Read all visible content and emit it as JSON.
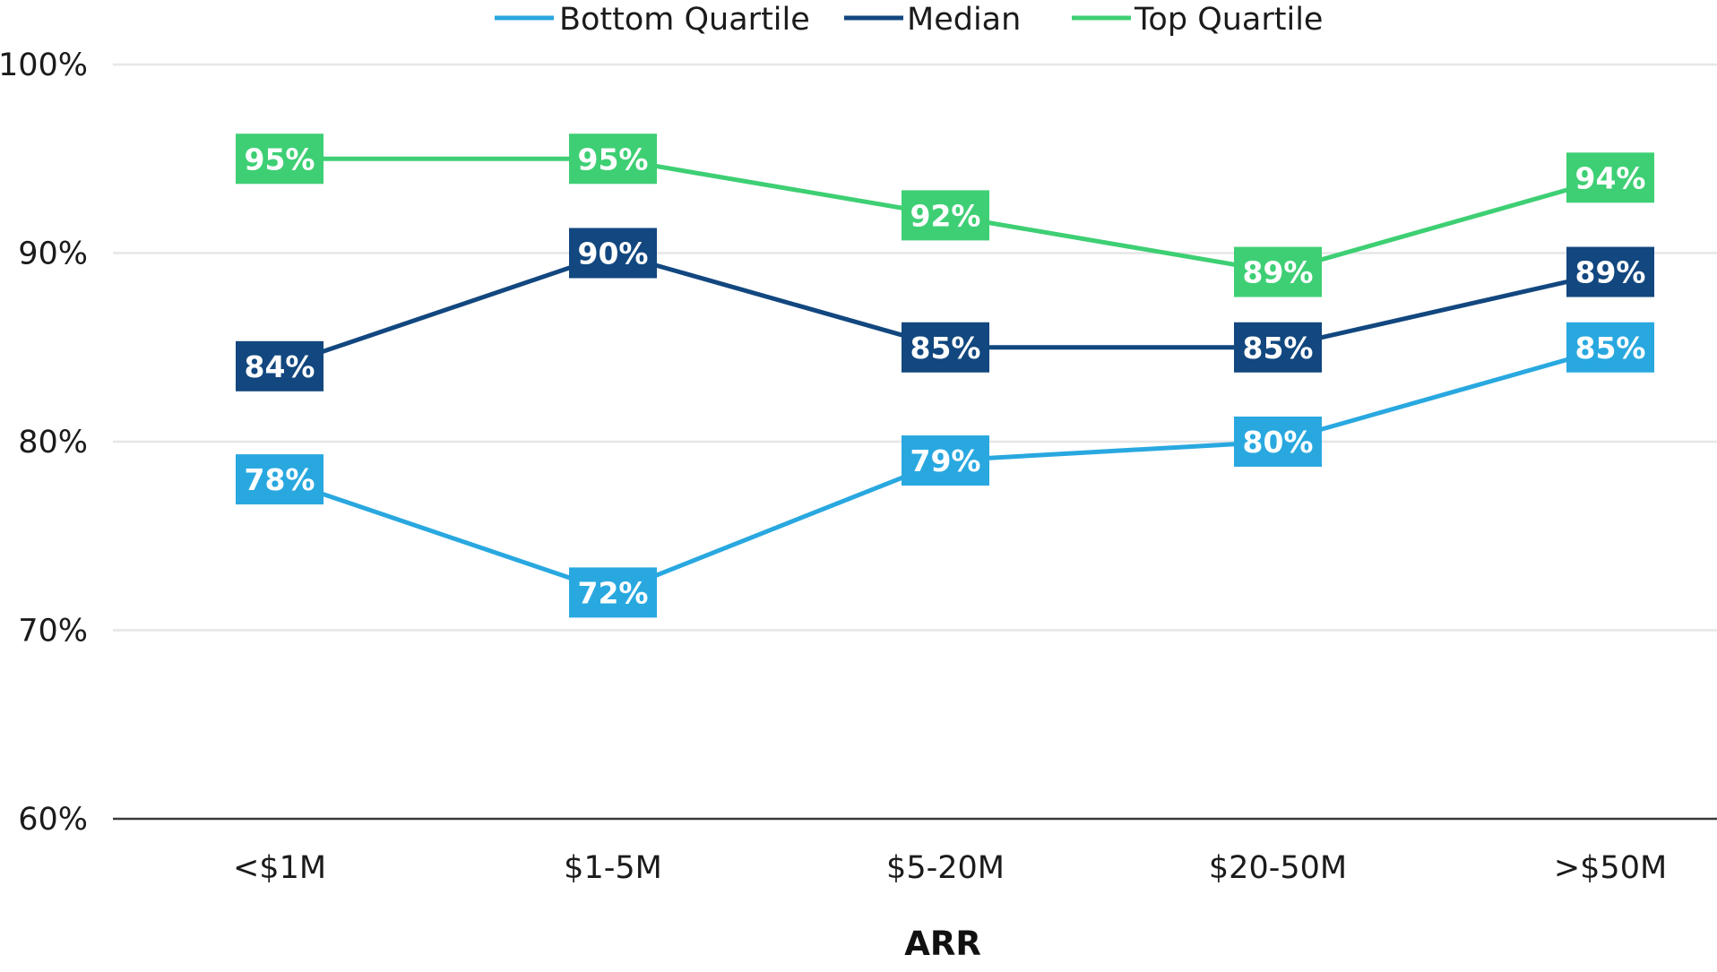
{
  "chart_data": {
    "type": "line",
    "title": "",
    "xlabel": "ARR",
    "ylabel": "",
    "categories": [
      "<$1M",
      "$1-5M",
      "$5-20M",
      "$20-50M",
      ">$50M"
    ],
    "ylim": [
      60,
      100
    ],
    "yticks": [
      60,
      70,
      80,
      90,
      100
    ],
    "ytick_labels": [
      "60%",
      "70%",
      "80%",
      "90%",
      "100%"
    ],
    "value_suffix": "%",
    "grid": true,
    "legend_position": "top-center",
    "series": [
      {
        "name": "Bottom Quartile",
        "color": "#29a8e0",
        "values": [
          78,
          72,
          79,
          80,
          85
        ]
      },
      {
        "name": "Median",
        "color": "#12477f",
        "values": [
          84,
          90,
          85,
          85,
          89
        ]
      },
      {
        "name": "Top Quartile",
        "color": "#3ecf74",
        "values": [
          95,
          95,
          92,
          89,
          94
        ]
      }
    ]
  }
}
